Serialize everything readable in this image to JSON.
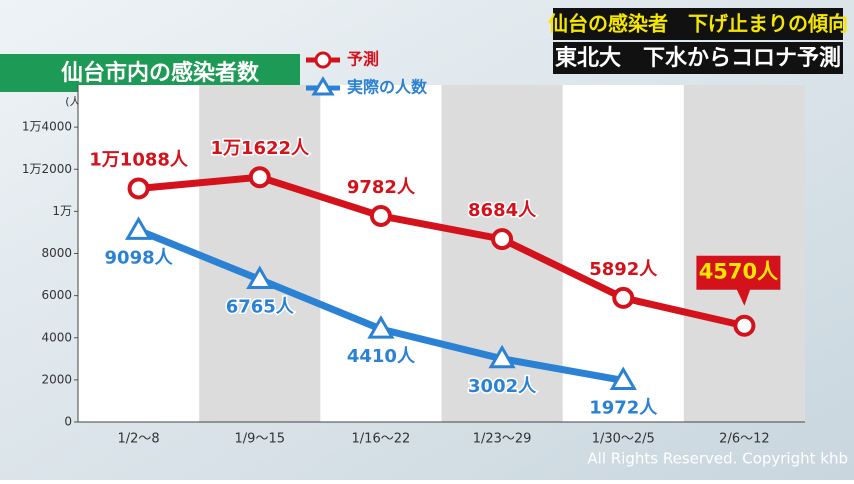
{
  "headline": {
    "line1": "仙台の感染者　下げ止まりの傾向",
    "line2": "東北大　下水からコロナ予測"
  },
  "copyright": "All Rights Reserved. Copyright khb",
  "chart_data": {
    "type": "line",
    "title": "仙台市内の感染者数",
    "y_unit": "(人)",
    "categories": [
      "1/2～8",
      "1/9～15",
      "1/16～22",
      "1/23～29",
      "1/30～2/5",
      "2/6～12"
    ],
    "series": [
      {
        "name": "予測",
        "color": "#d3121c",
        "marker": "circle",
        "values": [
          11088,
          11622,
          9782,
          8684,
          5892,
          4570
        ],
        "value_labels": [
          "1万1088人",
          "1万1622人",
          "9782人",
          "8684人",
          "5892人",
          "4570人"
        ]
      },
      {
        "name": "実際の人数",
        "color": "#2b82d4",
        "marker": "triangle",
        "values": [
          9098,
          6765,
          4410,
          3002,
          1972,
          null
        ],
        "value_labels": [
          "9098人",
          "6765人",
          "4410人",
          "3002人",
          "1972人",
          null
        ]
      }
    ],
    "ylim": [
      0,
      16000
    ],
    "yticks": [
      0,
      2000,
      4000,
      6000,
      8000,
      {
        "value": 10000,
        "label": "1万"
      },
      {
        "value": 12000,
        "label": "1万2000"
      },
      {
        "value": 14000,
        "label": "1万4000"
      }
    ]
  }
}
